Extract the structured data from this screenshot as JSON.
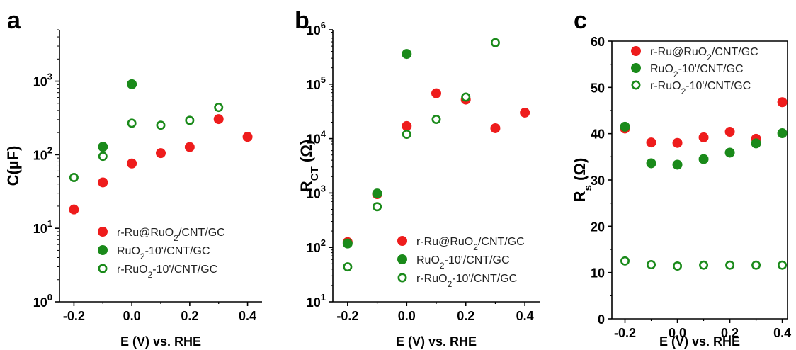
{
  "colors": {
    "red": "#ee1c1c",
    "green": "#1a8a1a",
    "axis": "#000000"
  },
  "chart_data": [
    {
      "panel": "a",
      "type": "scatter",
      "xlabel": "E (V) vs. RHE",
      "ylabel": "C(µF)",
      "ylabel_parts": [
        {
          "t": "C(",
          "s": ""
        },
        {
          "t": "µF)",
          "s": ""
        }
      ],
      "yscale": "log",
      "xlim": [
        -0.25,
        0.45
      ],
      "ylim": [
        1,
        5000
      ],
      "x_ticks": [
        -0.2,
        0.0,
        0.2,
        0.4
      ],
      "x_tick_labels": [
        "-0.2",
        "0.0",
        "0.2",
        "0.4"
      ],
      "y_ticks": [
        {
          "value": 1,
          "base": "10",
          "exp": "0"
        },
        {
          "value": 10,
          "base": "10",
          "exp": "1"
        },
        {
          "value": 100,
          "base": "10",
          "exp": "2"
        },
        {
          "value": 1000,
          "base": "10",
          "exp": "3"
        }
      ],
      "legend": "bottom-right",
      "series": [
        {
          "name": "r-Ru@RuO2/CNT/GC",
          "name_parts": [
            {
              "t": "r-Ru@RuO",
              "s": ""
            },
            {
              "t": "2",
              "s": "sub"
            },
            {
              "t": "/CNT/GC",
              "s": ""
            }
          ],
          "style": "filled-red",
          "points": [
            [
              -0.2,
              18
            ],
            [
              -0.1,
              42
            ],
            [
              0.0,
              76
            ],
            [
              0.1,
              105
            ],
            [
              0.2,
              127
            ],
            [
              0.3,
              305
            ],
            [
              0.4,
              175
            ]
          ]
        },
        {
          "name": "RuO2-10'/CNT/GC",
          "name_parts": [
            {
              "t": "RuO",
              "s": ""
            },
            {
              "t": "2",
              "s": "sub"
            },
            {
              "t": "-10'/CNT/GC",
              "s": ""
            }
          ],
          "style": "filled-green",
          "points": [
            [
              -0.1,
              128
            ],
            [
              0.0,
              910
            ]
          ]
        },
        {
          "name": "r-RuO2-10'/CNT/GC",
          "name_parts": [
            {
              "t": "r-RuO",
              "s": ""
            },
            {
              "t": "2",
              "s": "sub"
            },
            {
              "t": "-10'/CNT/GC",
              "s": ""
            }
          ],
          "style": "open-green",
          "points": [
            [
              -0.2,
              49
            ],
            [
              -0.1,
              95
            ],
            [
              0.0,
              268
            ],
            [
              0.1,
              252
            ],
            [
              0.2,
              293
            ],
            [
              0.3,
              440
            ]
          ]
        }
      ]
    },
    {
      "panel": "b",
      "type": "scatter",
      "xlabel": "E (V) vs. RHE",
      "ylabel": "RCT (Ω)",
      "ylabel_parts": [
        {
          "t": "R",
          "s": ""
        },
        {
          "t": "CT",
          "s": "sub"
        },
        {
          "t": " (Ω)",
          "s": ""
        }
      ],
      "yscale": "log",
      "xlim": [
        -0.25,
        0.45
      ],
      "ylim": [
        10,
        1000000
      ],
      "x_ticks": [
        -0.2,
        0.0,
        0.2,
        0.4
      ],
      "x_tick_labels": [
        "-0.2",
        "0.0",
        "0.2",
        "0.4"
      ],
      "y_ticks": [
        {
          "value": 10,
          "base": "10",
          "exp": "1"
        },
        {
          "value": 100,
          "base": "10",
          "exp": "2"
        },
        {
          "value": 1000,
          "base": "10",
          "exp": "3"
        },
        {
          "value": 10000,
          "base": "10",
          "exp": "4"
        },
        {
          "value": 100000,
          "base": "10",
          "exp": "5"
        },
        {
          "value": 1000000,
          "base": "10",
          "exp": "6"
        }
      ],
      "legend": "bottom-right",
      "series": [
        {
          "name": "r-Ru@RuO2/CNT/GC",
          "name_parts": [
            {
              "t": "r-Ru@RuO",
              "s": ""
            },
            {
              "t": "2",
              "s": "sub"
            },
            {
              "t": "/CNT/GC",
              "s": ""
            }
          ],
          "style": "filled-red",
          "points": [
            [
              -0.2,
              125
            ],
            [
              -0.1,
              950
            ],
            [
              0.0,
              17000
            ],
            [
              0.1,
              68000
            ],
            [
              0.2,
              52000
            ],
            [
              0.3,
              15500
            ],
            [
              0.4,
              30000
            ]
          ]
        },
        {
          "name": "RuO2-10'/CNT/GC",
          "name_parts": [
            {
              "t": "RuO",
              "s": ""
            },
            {
              "t": "2",
              "s": "sub"
            },
            {
              "t": "-10'/CNT/GC",
              "s": ""
            }
          ],
          "style": "filled-green",
          "points": [
            [
              -0.2,
              118
            ],
            [
              -0.1,
              980
            ],
            [
              0.0,
              360000
            ]
          ]
        },
        {
          "name": "r-RuO2-10'/CNT/GC",
          "name_parts": [
            {
              "t": "r-RuO",
              "s": ""
            },
            {
              "t": "2",
              "s": "sub"
            },
            {
              "t": "-10'/CNT/GC",
              "s": ""
            }
          ],
          "style": "open-green",
          "points": [
            [
              -0.2,
              44
            ],
            [
              -0.1,
              560
            ],
            [
              0.0,
              12000
            ],
            [
              0.1,
              22500
            ],
            [
              0.2,
              58000
            ],
            [
              0.3,
              580000
            ]
          ]
        }
      ]
    },
    {
      "panel": "c",
      "type": "scatter",
      "xlabel": "E (V) vs. RHE",
      "ylabel": "Rs (Ω)",
      "ylabel_parts": [
        {
          "t": "R",
          "s": ""
        },
        {
          "t": "s",
          "s": "sub"
        },
        {
          "t": " (Ω)",
          "s": ""
        }
      ],
      "yscale": "linear",
      "xlim": [
        -0.25,
        0.42
      ],
      "ylim": [
        0,
        60
      ],
      "x_ticks": [
        -0.2,
        0.0,
        0.2,
        0.4
      ],
      "x_tick_labels": [
        "-0.2",
        "0.0",
        "0.2",
        "0.4"
      ],
      "y_ticks": [
        {
          "value": 0,
          "label": "0"
        },
        {
          "value": 10,
          "label": "10"
        },
        {
          "value": 20,
          "label": "20"
        },
        {
          "value": 30,
          "label": "30"
        },
        {
          "value": 40,
          "label": "40"
        },
        {
          "value": 50,
          "label": "50"
        },
        {
          "value": 60,
          "label": "60"
        }
      ],
      "legend": "top-left",
      "series": [
        {
          "name": "r-Ru@RuO2/CNT/GC",
          "name_parts": [
            {
              "t": "r-Ru@RuO",
              "s": ""
            },
            {
              "t": "2",
              "s": "sub"
            },
            {
              "t": "/CNT/GC",
              "s": ""
            }
          ],
          "style": "filled-red",
          "points": [
            [
              -0.2,
              41.1
            ],
            [
              -0.1,
              38.1
            ],
            [
              0.0,
              38.0
            ],
            [
              0.1,
              39.2
            ],
            [
              0.2,
              40.4
            ],
            [
              0.3,
              38.9
            ],
            [
              0.4,
              46.8
            ]
          ]
        },
        {
          "name": "RuO2-10'/CNT/GC",
          "name_parts": [
            {
              "t": "RuO",
              "s": ""
            },
            {
              "t": "2",
              "s": "sub"
            },
            {
              "t": "-10'/CNT/GC",
              "s": ""
            }
          ],
          "style": "filled-green",
          "points": [
            [
              -0.2,
              41.5
            ],
            [
              -0.1,
              33.6
            ],
            [
              0.0,
              33.3
            ],
            [
              0.1,
              34.5
            ],
            [
              0.2,
              35.9
            ],
            [
              0.3,
              37.9
            ],
            [
              0.4,
              40.1
            ]
          ]
        },
        {
          "name": "r-RuO2-10'/CNT/GC",
          "name_parts": [
            {
              "t": "r-RuO",
              "s": ""
            },
            {
              "t": "2",
              "s": "sub"
            },
            {
              "t": "-10'/CNT/GC",
              "s": ""
            }
          ],
          "style": "open-green",
          "points": [
            [
              -0.2,
              12.5
            ],
            [
              -0.1,
              11.7
            ],
            [
              0.0,
              11.4
            ],
            [
              0.1,
              11.6
            ],
            [
              0.2,
              11.6
            ],
            [
              0.3,
              11.6
            ],
            [
              0.4,
              11.6
            ]
          ]
        }
      ]
    }
  ]
}
